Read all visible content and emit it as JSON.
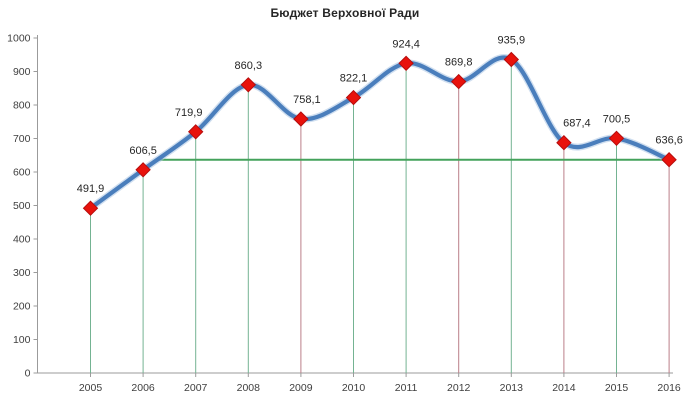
{
  "chart_data": {
    "type": "line",
    "title": "Бюджет Верховної Ради",
    "categories": [
      "2005",
      "2006",
      "2007",
      "2008",
      "2009",
      "2010",
      "2011",
      "2012",
      "2013",
      "2014",
      "2015",
      "2016"
    ],
    "series": [
      {
        "name": "Бюджет Верховної Ради",
        "values": [
          491.9,
          606.5,
          719.9,
          860.3,
          758.1,
          822.1,
          924.4,
          869.8,
          935.9,
          687.4,
          700.5,
          636.6
        ]
      }
    ],
    "point_labels": [
      "491,9",
      "606,5",
      "719,9",
      "860,3",
      "758,1",
      "822,1",
      "924,4",
      "869,8",
      "935,9",
      "687,4",
      "700,5",
      "636,6"
    ],
    "label_dx": [
      0,
      0,
      -7,
      0,
      6,
      0,
      0,
      0,
      0,
      13,
      0,
      0
    ],
    "ylim": [
      0,
      1000
    ],
    "y_tick_step": 100,
    "y_tick_labels": [
      "0",
      "100",
      "200",
      "300",
      "400",
      "500",
      "600",
      "700",
      "800",
      "900",
      "1000"
    ],
    "grid": "off",
    "legend_position": "none",
    "line_smoothing": true,
    "colors": {
      "line": "#4a7ebc",
      "line_halo": "#a9c4e4",
      "marker_fill": "#e8120c",
      "marker_stroke": "#b50d0d",
      "drop_line_up": "#74b392",
      "drop_line_down": "#bb7e88",
      "reference_line": "#44a25b",
      "axis": "#9b9b9b",
      "tick_text": "#3f3f3f",
      "label_text": "#262626"
    },
    "drop_line_direction": [
      "up",
      "up",
      "up",
      "up",
      "down",
      "up",
      "up",
      "down",
      "up",
      "down",
      "up",
      "down"
    ],
    "reference_line": {
      "value": 636.6,
      "starts_between": [
        "2006",
        "2007"
      ],
      "ends_at_category": "2016"
    }
  }
}
